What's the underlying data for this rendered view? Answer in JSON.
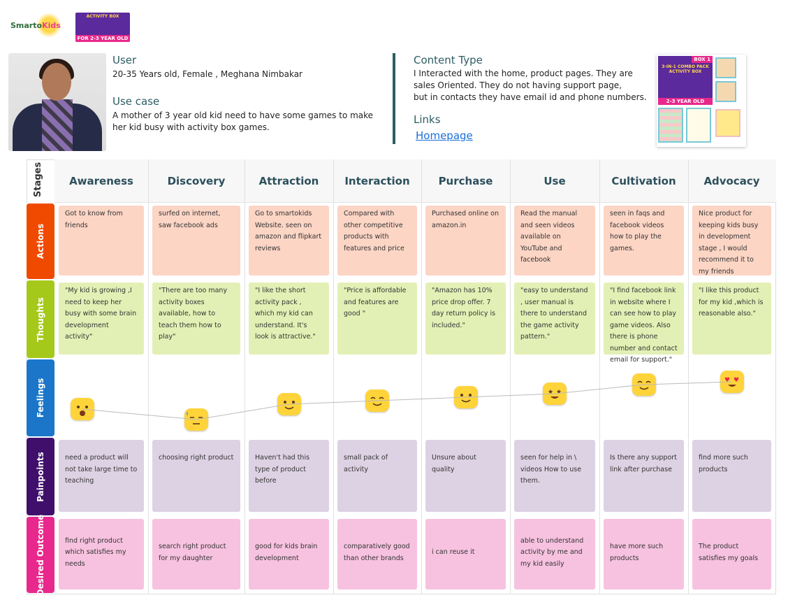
{
  "brand": {
    "logo_a": "Smarto",
    "logo_b": "Kids",
    "box_title": "ACTIVITY BOX",
    "box_age": "FOR 2-3 YEAR OLD"
  },
  "persona": {
    "user_heading": "User",
    "user_text": "20-35 Years old, Female , Meghana Nimbakar",
    "usecase_heading": "Use case",
    "usecase_text": "A mother of 3 year old kid need to have some games to make her kid busy with activity box games.",
    "content_heading": "Content Type",
    "content_lines": [
      "I Interacted with the home, product pages. They are",
      "sales Oriented. They do not having support page,",
      "but in contacts they have email id and phone numbers."
    ],
    "links_heading": "Links",
    "link_homepage": "Homepage"
  },
  "product": {
    "badge": "BOX 1",
    "title": "3-IN-1 COMBO PACK ACTIVITY BOX",
    "age": "2-3 YEAR OLD"
  },
  "board": {
    "stages_label": "Stages",
    "stages": [
      "Awareness",
      "Discovery",
      "Attraction",
      "Interaction",
      "Purchase",
      "Use",
      "Cultivation",
      "Advocacy"
    ],
    "lanes": [
      {
        "label": "Actions",
        "color": "#f04a00"
      },
      {
        "label": "Thoughts",
        "color": "#a4c91a"
      },
      {
        "label": "Feelings",
        "color": "#1b76c9"
      },
      {
        "label": "Painpoints",
        "color": "#3f0f6b"
      },
      {
        "label": "Desired Outcome",
        "color": "#e8288c"
      }
    ],
    "actions": [
      "Got to know from friends",
      "surfed on internet, saw facebook ads",
      "Go to smartokids Website. seen on amazon and flipkart reviews",
      "Compared with other competitive products with features and price",
      "Purchased online on amazon.in",
      "Read the manual and seen videos available on YouTube and facebook",
      "seen in faqs and facebook videos how to play the games.",
      "Nice product for keeping kids busy in development stage , I would recommend it to my friends"
    ],
    "thoughts": [
      "\"My kid is growing ,I need to keep her busy with some brain development activity\"",
      "\"There are too many activity boxes available, how to teach them how to play\"",
      "\"I like the short activity pack , which my kid can understand. It's look is attractive.\"",
      "\"Price is affordable and features are good \"",
      "\"Amazon has 10% price drop offer. 7 day return policy is included.\"",
      "\"easy to understand , user manual is there to understand the game activity pattern.\"",
      "\"I find facebook link in website where I can see how to play game videos. Also there is phone number and contact email for support.\"",
      "\"I like this product for my kid ,which is reasonable also.\""
    ],
    "feelings": [
      {
        "emoji": "surprised",
        "level": 3.5
      },
      {
        "emoji": "sweat-unamused",
        "level": 2
      },
      {
        "emoji": "slight-smile",
        "level": 4.2
      },
      {
        "emoji": "smile",
        "level": 4.7
      },
      {
        "emoji": "slight-smile",
        "level": 5.2
      },
      {
        "emoji": "star-struck",
        "level": 5.7
      },
      {
        "emoji": "smile",
        "level": 7
      },
      {
        "emoji": "heart-eyes",
        "level": 7.4
      }
    ],
    "painpoints": [
      "need a product will not take large time to teaching",
      "choosing right product",
      "Haven't had this type of  product before",
      "small pack of activity",
      "Unsure about quality",
      "seen for help in \\ videos How to use them.",
      "Is there any support link after purchase",
      "find more such products"
    ],
    "desired": [
      "find right product which satisfies my needs",
      "search right product for my daughter",
      "good for kids brain development",
      "comparatively good than other brands",
      "i can reuse it",
      "able to understand activity by  me and my kid easily",
      "have more such products",
      "The product satisfies my goals"
    ]
  }
}
